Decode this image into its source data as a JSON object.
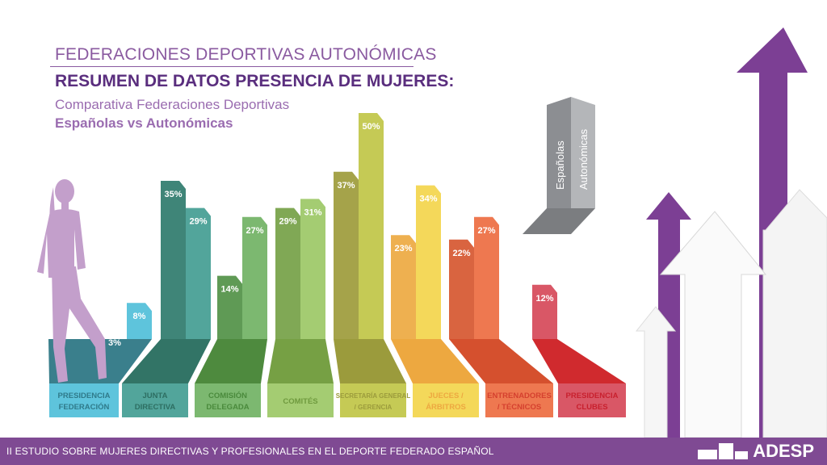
{
  "header": {
    "kicker": "FEDERACIONES DEPORTIVAS AUTONÓMICAS",
    "title": "RESUMEN DE DATOS PRESENCIA DE MUJERES:",
    "subtitle_line1": "Comparativa Federaciones Deportivas",
    "subtitle_line2": "Españolas vs Autonómicas"
  },
  "chart_data": {
    "type": "bar",
    "title": "RESUMEN DE DATOS PRESENCIA DE MUJERES",
    "categories": [
      "PRESIDENCIA FEDERACIÓN",
      "JUNTA DIRECTIVA",
      "COMISIÓN DELEGADA",
      "COMITÉS",
      "SECRETARÍA GENERAL / GERENCIA",
      "JUECES / ÁRBITROS",
      "ENTRENADORES / TÉCNICOS",
      "PRESIDENCIA CLUBES"
    ],
    "label_lines": [
      [
        "PRESIDENCIA",
        "FEDERACIÓN"
      ],
      [
        "JUNTA",
        "DIRECTIVA"
      ],
      [
        "COMISIÓN",
        "DELEGADA"
      ],
      [
        "COMITÉS"
      ],
      [
        "SECRETARÍA GENERAL",
        "/ GERENCIA"
      ],
      [
        "JUECES /",
        "ÁRBITROS"
      ],
      [
        "ENTRENADORES",
        "/ TÉCNICOS"
      ],
      [
        "PRESIDENCIA",
        "CLUBES"
      ]
    ],
    "series": [
      {
        "name": "Españolas",
        "values": [
          3,
          35,
          14,
          29,
          37,
          23,
          22,
          null
        ]
      },
      {
        "name": "Autonómicas",
        "values": [
          8,
          29,
          27,
          31,
          50,
          34,
          27,
          12
        ]
      }
    ],
    "unit": "%",
    "ylim": [
      0,
      50
    ],
    "legend": {
      "placement": "top-right",
      "entries": [
        "Españolas",
        "Autonómicas"
      ]
    },
    "colors": [
      {
        "esp": "#3a7f8c",
        "auto": "#5ec4dc",
        "floor": "#3a7f8c",
        "label": "#5ec4dc",
        "text": "#2f7a8a"
      },
      {
        "esp": "#3f8578",
        "auto": "#52a59b",
        "floor": "#327466",
        "label": "#52a59b",
        "text": "#2d6e62"
      },
      {
        "esp": "#5f9a55",
        "auto": "#7cb870",
        "floor": "#4e8a3e",
        "label": "#7cb870",
        "text": "#4a8a3c"
      },
      {
        "esp": "#80a855",
        "auto": "#a4cc72",
        "floor": "#76a044",
        "label": "#a4cc72",
        "text": "#6f9a3e"
      },
      {
        "esp": "#a5a34a",
        "auto": "#c5ca55",
        "floor": "#9b9b3c",
        "label": "#c5ca55",
        "text": "#9b9b3c"
      },
      {
        "esp": "#eeb050",
        "auto": "#f4d85a",
        "floor": "#eda840",
        "label": "#f4d85a",
        "text": "#eda840"
      },
      {
        "esp": "#d96440",
        "auto": "#ee7850",
        "floor": "#d5502e",
        "label": "#ee7850",
        "text": "#d5402e"
      },
      {
        "esp": "#d95766",
        "auto": "#d95766",
        "floor": "#d02a2e",
        "label": "#d95766",
        "text": "#c8202e"
      }
    ]
  },
  "footer": {
    "text": "II ESTUDIO SOBRE MUJERES DIRECTIVAS Y PROFESIONALES EN EL DEPORTE FEDERADO ESPAÑOL",
    "logo": "ADESP"
  }
}
